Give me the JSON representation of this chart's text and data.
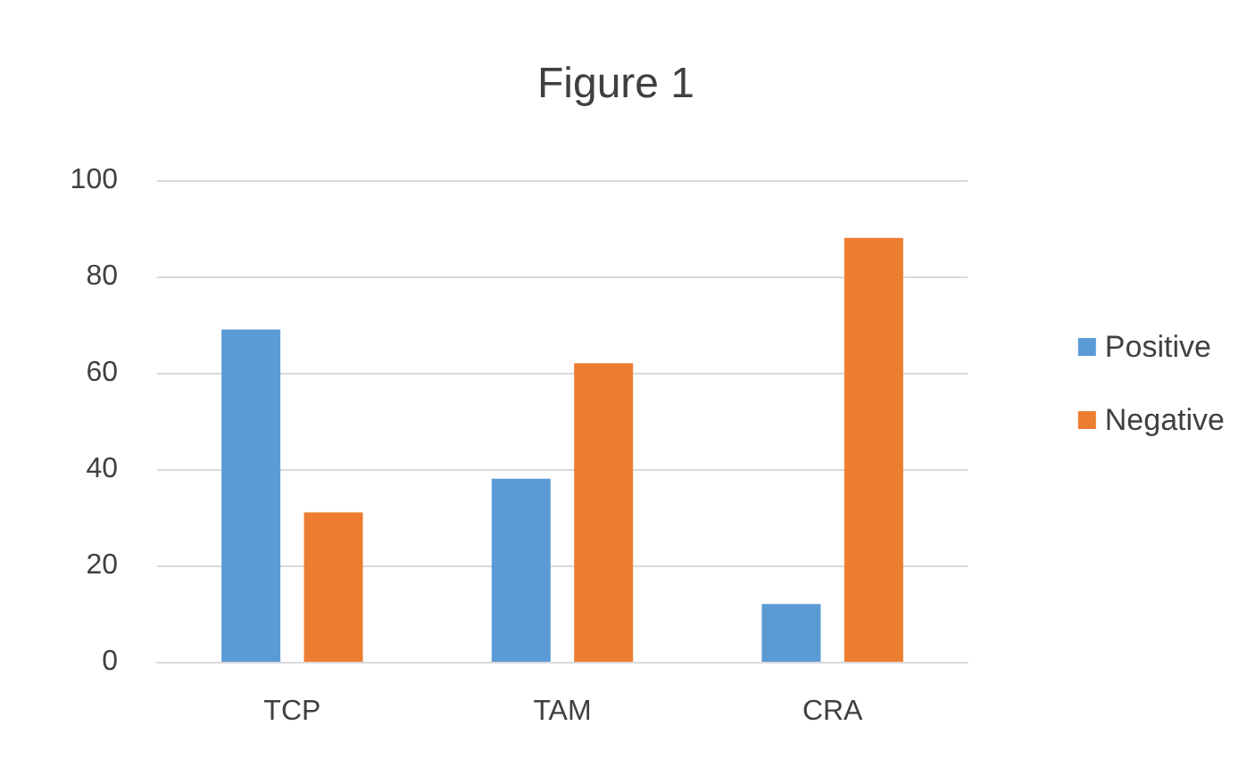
{
  "chart_data": {
    "type": "bar",
    "title": "Figure 1",
    "categories": [
      "TCP",
      "TAM",
      "CRA"
    ],
    "series": [
      {
        "name": "Positive",
        "color": "#5b9bd5",
        "values": [
          69,
          38,
          12
        ]
      },
      {
        "name": "Negative",
        "color": "#ed7d31",
        "values": [
          31,
          62,
          88
        ]
      }
    ],
    "ylim": [
      0,
      100
    ],
    "yticks": [
      0,
      20,
      40,
      60,
      80,
      100
    ],
    "grid": "y",
    "legend": "right"
  }
}
